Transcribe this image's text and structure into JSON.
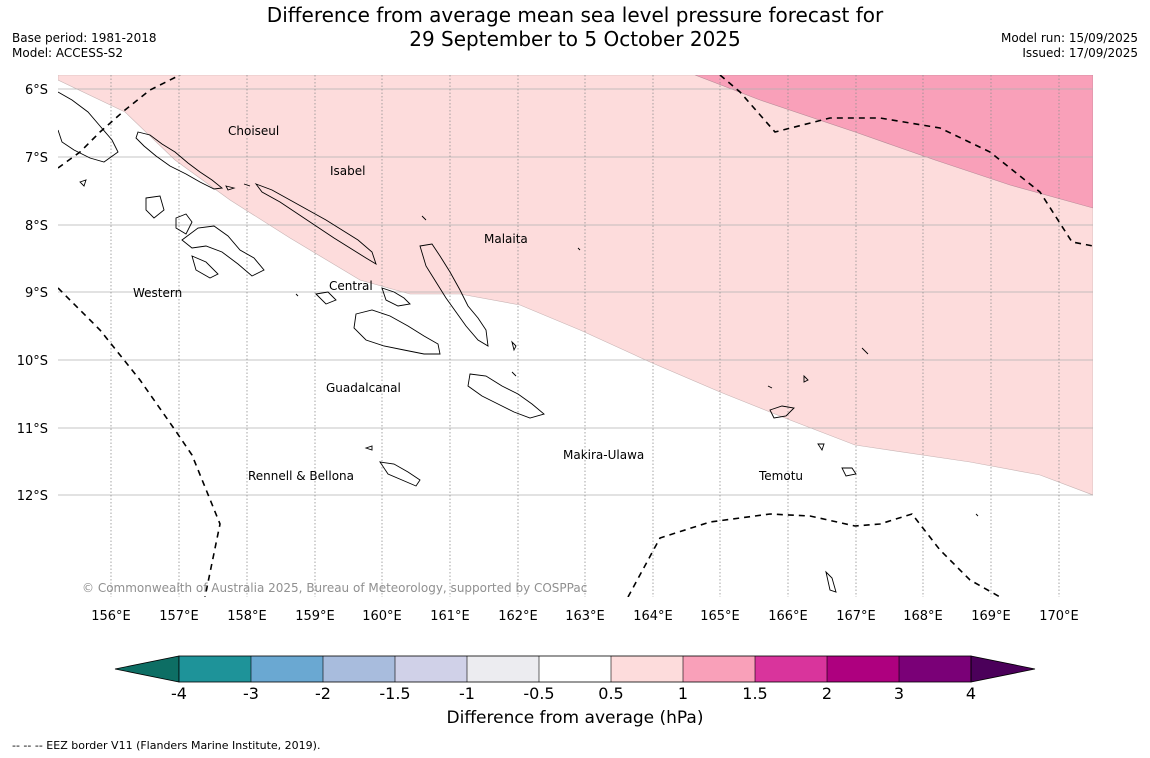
{
  "header": {
    "title_line1": "Difference from average mean sea level pressure forecast for",
    "title_line2": "29 September to 5 October 2025",
    "base_period": "Base period: 1981-2018",
    "model": "Model: ACCESS-S2",
    "model_run": "Model run: 15/09/2025",
    "issued": "Issued: 17/09/2025"
  },
  "map": {
    "lat_labels": [
      "6°S",
      "7°S",
      "8°S",
      "9°S",
      "10°S",
      "11°S",
      "12°S"
    ],
    "lon_labels": [
      "156°E",
      "157°E",
      "158°E",
      "159°E",
      "160°E",
      "161°E",
      "162°E",
      "163°E",
      "164°E",
      "165°E",
      "166°E",
      "167°E",
      "168°E",
      "169°E",
      "170°E"
    ],
    "regions": [
      "Choiseul",
      "Isabel",
      "Malaita",
      "Western",
      "Central",
      "Guadalcanal",
      "Makira-Ulawa",
      "Rennell & Bellona",
      "Temotu"
    ],
    "copyright": "© Commonwealth of Australia 2025, Bureau of Meteorology, supported by COSPPac",
    "colors": {
      "band_0_5_to_1": "#fddcdc",
      "band_1_to_1_5": "#f9a0b9"
    }
  },
  "colorbar": {
    "ticks": [
      "-4",
      "-3",
      "-2",
      "-1.5",
      "-1",
      "-0.5",
      "0.5",
      "1",
      "1.5",
      "2",
      "3",
      "4"
    ],
    "colors": [
      "#0d6e64",
      "#1e9399",
      "#6aa8d2",
      "#a8bcdd",
      "#d0d1e8",
      "#ececf0",
      "#ffffff",
      "#fddcdc",
      "#f9a0b9",
      "#d9349c",
      "#ae007f",
      "#7a0077",
      "#4b005a"
    ],
    "label": "Difference from average (hPa)"
  },
  "footer": {
    "eez_note": "--  --  -- EEZ border V11 (Flanders Marine Institute, 2019)."
  }
}
